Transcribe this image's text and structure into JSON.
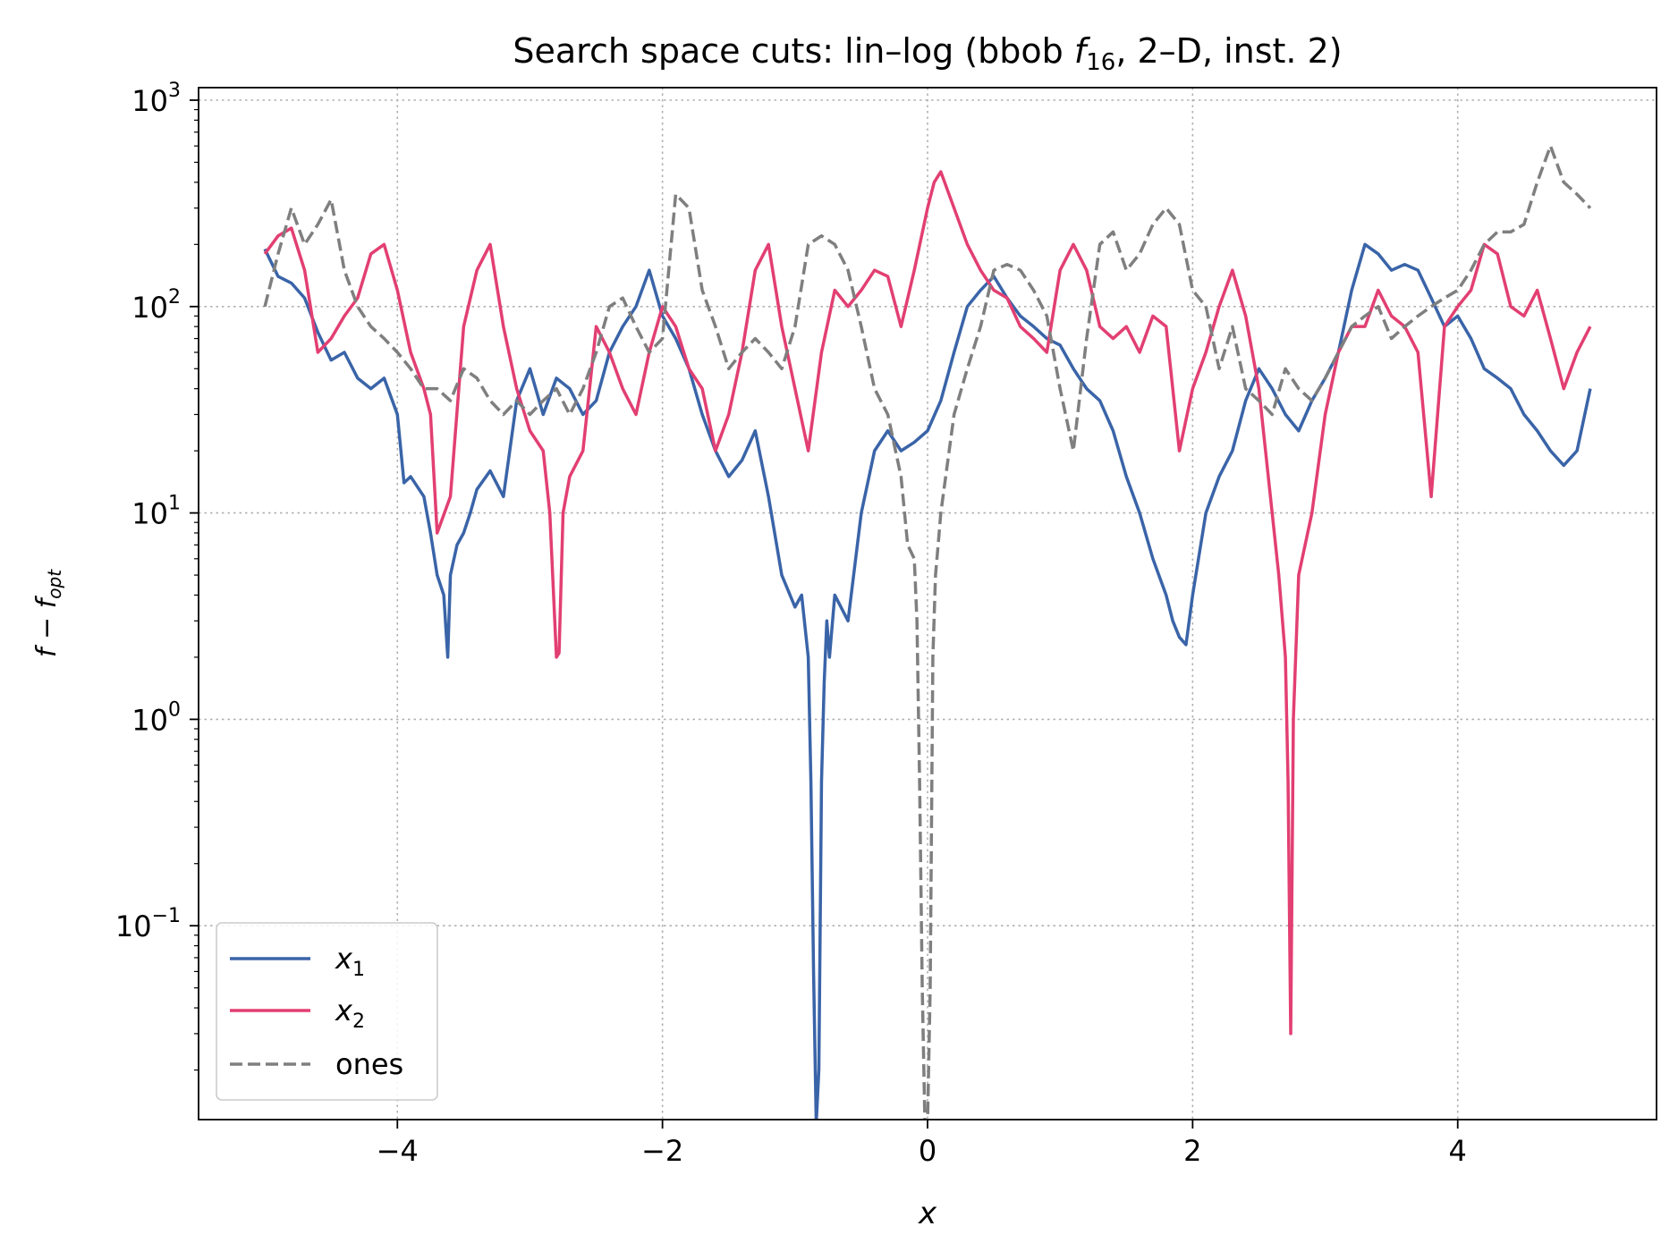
{
  "chart_data": {
    "type": "line",
    "title": {
      "prefix": "Search space cuts: lin–log (bbob ",
      "func_symbol": "f",
      "func_subscript": "16",
      "suffix": ", 2–D, inst. 2)"
    },
    "xlabel": "x",
    "ylabel": {
      "f": "f",
      "minus": " − ",
      "fopt": "f",
      "opt_subscript": "opt"
    },
    "x_scale": "linear",
    "y_scale": "log",
    "xlim": [
      -5.5,
      5.5
    ],
    "ylim": [
      0.0115,
      1150
    ],
    "x_ticks": [
      {
        "value": -4,
        "label": "−4"
      },
      {
        "value": -2,
        "label": "−2"
      },
      {
        "value": 0,
        "label": "0"
      },
      {
        "value": 2,
        "label": "2"
      },
      {
        "value": 4,
        "label": "4"
      }
    ],
    "y_ticks": [
      {
        "value": 0.1,
        "base": "10",
        "exp": "−1"
      },
      {
        "value": 1,
        "base": "10",
        "exp": "0"
      },
      {
        "value": 10,
        "base": "10",
        "exp": "1"
      },
      {
        "value": 100,
        "base": "10",
        "exp": "2"
      },
      {
        "value": 1000,
        "base": "10",
        "exp": "3"
      }
    ],
    "grid": true,
    "legend_position": "lower-left",
    "series": [
      {
        "name": "x",
        "subscript": "1",
        "color": "#3a64a8",
        "dash": "solid",
        "x": [
          -5.0,
          -4.9,
          -4.8,
          -4.7,
          -4.6,
          -4.5,
          -4.4,
          -4.3,
          -4.2,
          -4.1,
          -4.0,
          -3.95,
          -3.9,
          -3.8,
          -3.75,
          -3.7,
          -3.65,
          -3.62,
          -3.6,
          -3.55,
          -3.5,
          -3.45,
          -3.4,
          -3.3,
          -3.2,
          -3.1,
          -3.0,
          -2.9,
          -2.8,
          -2.7,
          -2.6,
          -2.5,
          -2.4,
          -2.3,
          -2.2,
          -2.1,
          -2.0,
          -1.9,
          -1.8,
          -1.7,
          -1.6,
          -1.5,
          -1.4,
          -1.3,
          -1.2,
          -1.1,
          -1.0,
          -0.95,
          -0.9,
          -0.88,
          -0.86,
          -0.84,
          -0.82,
          -0.8,
          -0.78,
          -0.76,
          -0.74,
          -0.7,
          -0.6,
          -0.5,
          -0.4,
          -0.3,
          -0.2,
          -0.1,
          0.0,
          0.1,
          0.2,
          0.3,
          0.4,
          0.5,
          0.6,
          0.7,
          0.8,
          0.9,
          1.0,
          1.1,
          1.2,
          1.3,
          1.4,
          1.5,
          1.6,
          1.7,
          1.8,
          1.85,
          1.9,
          1.95,
          2.0,
          2.1,
          2.2,
          2.3,
          2.4,
          2.5,
          2.6,
          2.7,
          2.8,
          2.9,
          3.0,
          3.1,
          3.2,
          3.3,
          3.4,
          3.5,
          3.6,
          3.7,
          3.8,
          3.9,
          4.0,
          4.1,
          4.2,
          4.3,
          4.4,
          4.5,
          4.6,
          4.7,
          4.8,
          4.9,
          5.0
        ],
        "y": [
          190,
          140,
          130,
          110,
          75,
          55,
          60,
          45,
          40,
          45,
          30,
          14,
          15,
          12,
          8,
          5,
          4,
          2.0,
          5,
          7,
          8,
          10,
          13,
          16,
          12,
          35,
          50,
          30,
          45,
          40,
          30,
          35,
          60,
          80,
          100,
          150,
          90,
          70,
          50,
          30,
          20,
          15,
          18,
          25,
          12,
          5,
          3.5,
          4,
          2,
          0.5,
          0.06,
          0.011,
          0.02,
          0.5,
          1.5,
          3,
          2,
          4,
          3,
          10,
          20,
          25,
          20,
          22,
          25,
          35,
          60,
          100,
          120,
          140,
          110,
          90,
          80,
          70,
          65,
          50,
          40,
          35,
          25,
          15,
          10,
          6,
          4,
          3,
          2.5,
          2.3,
          4,
          10,
          15,
          20,
          35,
          50,
          40,
          30,
          25,
          35,
          45,
          60,
          120,
          200,
          180,
          150,
          160,
          150,
          110,
          80,
          90,
          70,
          50,
          45,
          40,
          30,
          25,
          20,
          17,
          20,
          40
        ]
      },
      {
        "name": "x",
        "subscript": "2",
        "color": "#e23f72",
        "dash": "solid",
        "x": [
          -5.0,
          -4.9,
          -4.8,
          -4.7,
          -4.6,
          -4.5,
          -4.4,
          -4.3,
          -4.2,
          -4.1,
          -4.0,
          -3.9,
          -3.8,
          -3.75,
          -3.7,
          -3.6,
          -3.5,
          -3.4,
          -3.3,
          -3.2,
          -3.1,
          -3.0,
          -2.9,
          -2.85,
          -2.8,
          -2.78,
          -2.75,
          -2.7,
          -2.6,
          -2.5,
          -2.4,
          -2.3,
          -2.2,
          -2.1,
          -2.0,
          -1.9,
          -1.8,
          -1.7,
          -1.6,
          -1.5,
          -1.4,
          -1.3,
          -1.2,
          -1.1,
          -1.0,
          -0.9,
          -0.8,
          -0.7,
          -0.6,
          -0.5,
          -0.4,
          -0.3,
          -0.2,
          -0.1,
          0.0,
          0.05,
          0.1,
          0.2,
          0.3,
          0.4,
          0.5,
          0.6,
          0.7,
          0.8,
          0.9,
          1.0,
          1.1,
          1.2,
          1.3,
          1.4,
          1.5,
          1.6,
          1.7,
          1.8,
          1.9,
          2.0,
          2.1,
          2.2,
          2.3,
          2.4,
          2.5,
          2.55,
          2.6,
          2.65,
          2.7,
          2.72,
          2.74,
          2.76,
          2.8,
          2.9,
          3.0,
          3.1,
          3.2,
          3.3,
          3.4,
          3.5,
          3.6,
          3.7,
          3.8,
          3.9,
          4.0,
          4.1,
          4.2,
          4.3,
          4.4,
          4.5,
          4.6,
          4.7,
          4.8,
          4.9,
          5.0
        ],
        "y": [
          180,
          220,
          240,
          150,
          60,
          70,
          90,
          110,
          180,
          200,
          120,
          60,
          40,
          30,
          8,
          12,
          80,
          150,
          200,
          80,
          40,
          25,
          20,
          10,
          2.0,
          2.1,
          10,
          15,
          20,
          80,
          60,
          40,
          30,
          60,
          100,
          80,
          50,
          40,
          20,
          30,
          60,
          150,
          200,
          80,
          40,
          20,
          60,
          120,
          100,
          120,
          150,
          140,
          80,
          150,
          300,
          400,
          450,
          300,
          200,
          150,
          120,
          110,
          80,
          70,
          60,
          150,
          200,
          150,
          80,
          70,
          80,
          60,
          90,
          80,
          20,
          40,
          60,
          100,
          150,
          90,
          40,
          20,
          10,
          5,
          2,
          0.5,
          0.03,
          1,
          5,
          10,
          30,
          60,
          80,
          80,
          120,
          90,
          80,
          60,
          12,
          80,
          100,
          120,
          200,
          180,
          100,
          90,
          120,
          70,
          40,
          60,
          80
        ]
      },
      {
        "name": "ones",
        "subscript": "",
        "color": "#7f7f7f",
        "dash": "dashed",
        "x": [
          -5.0,
          -4.9,
          -4.8,
          -4.7,
          -4.6,
          -4.5,
          -4.4,
          -4.3,
          -4.2,
          -4.1,
          -4.0,
          -3.9,
          -3.8,
          -3.7,
          -3.6,
          -3.5,
          -3.4,
          -3.3,
          -3.2,
          -3.1,
          -3.0,
          -2.9,
          -2.8,
          -2.7,
          -2.6,
          -2.5,
          -2.4,
          -2.3,
          -2.2,
          -2.1,
          -2.0,
          -1.9,
          -1.8,
          -1.7,
          -1.6,
          -1.5,
          -1.4,
          -1.3,
          -1.2,
          -1.1,
          -1.0,
          -0.9,
          -0.8,
          -0.7,
          -0.6,
          -0.5,
          -0.4,
          -0.3,
          -0.2,
          -0.15,
          -0.1,
          -0.08,
          -0.06,
          -0.04,
          -0.02,
          0.0,
          0.02,
          0.04,
          0.06,
          0.08,
          0.1,
          0.2,
          0.3,
          0.4,
          0.5,
          0.6,
          0.7,
          0.8,
          0.9,
          1.0,
          1.1,
          1.2,
          1.3,
          1.4,
          1.5,
          1.6,
          1.7,
          1.8,
          1.9,
          2.0,
          2.1,
          2.2,
          2.3,
          2.4,
          2.5,
          2.6,
          2.7,
          2.8,
          2.9,
          3.0,
          3.1,
          3.2,
          3.3,
          3.4,
          3.5,
          3.6,
          3.7,
          3.8,
          3.9,
          4.0,
          4.1,
          4.2,
          4.3,
          4.4,
          4.5,
          4.6,
          4.7,
          4.8,
          4.9,
          5.0
        ],
        "y": [
          100,
          180,
          300,
          200,
          250,
          330,
          150,
          100,
          80,
          70,
          60,
          50,
          40,
          40,
          35,
          50,
          45,
          35,
          30,
          35,
          30,
          35,
          40,
          30,
          40,
          60,
          100,
          110,
          80,
          60,
          70,
          350,
          300,
          120,
          80,
          50,
          60,
          70,
          60,
          50,
          80,
          200,
          220,
          200,
          150,
          80,
          40,
          30,
          15,
          7,
          6,
          3,
          0.5,
          0.05,
          0.011,
          0.011,
          0.05,
          2,
          5,
          7,
          10,
          30,
          50,
          80,
          150,
          160,
          150,
          120,
          90,
          40,
          20,
          70,
          200,
          230,
          150,
          180,
          250,
          300,
          250,
          120,
          100,
          50,
          80,
          40,
          35,
          30,
          50,
          40,
          35,
          45,
          60,
          80,
          90,
          100,
          70,
          80,
          90,
          100,
          110,
          120,
          150,
          200,
          230,
          230,
          250,
          400,
          600,
          400,
          350,
          300
        ]
      }
    ]
  }
}
